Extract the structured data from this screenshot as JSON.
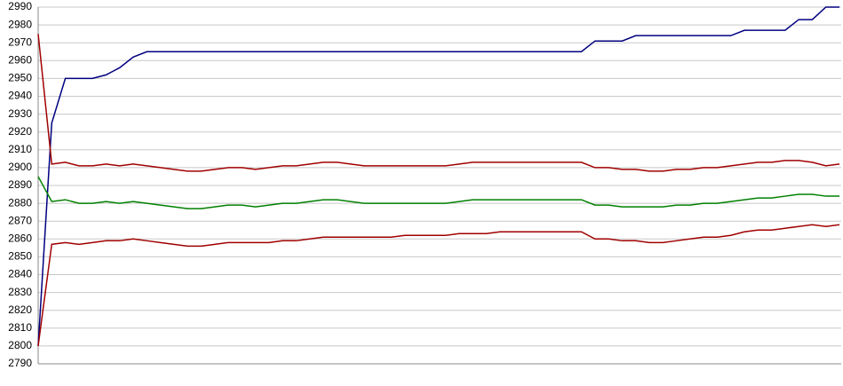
{
  "chart_data": {
    "type": "line",
    "ylim": [
      2790,
      2990
    ],
    "yticks": [
      2790,
      2800,
      2810,
      2820,
      2830,
      2840,
      2850,
      2860,
      2870,
      2880,
      2890,
      2900,
      2910,
      2920,
      2930,
      2940,
      2950,
      2960,
      2970,
      2980,
      2990
    ],
    "grid": true,
    "series": [
      {
        "color": "#000080",
        "values": [
          2800,
          2925,
          2950,
          2950,
          2950,
          2952,
          2956,
          2962,
          2965,
          2965,
          2965,
          2965,
          2965,
          2965,
          2965,
          2965,
          2965,
          2965,
          2965,
          2965,
          2965,
          2965,
          2965,
          2965,
          2965,
          2965,
          2965,
          2965,
          2965,
          2965,
          2965,
          2965,
          2965,
          2965,
          2965,
          2965,
          2965,
          2965,
          2965,
          2965,
          2965,
          2971,
          2971,
          2971,
          2974,
          2974,
          2974,
          2974,
          2974,
          2974,
          2974,
          2974,
          2977,
          2977,
          2977,
          2977,
          2983,
          2983,
          2990,
          2990
        ]
      },
      {
        "color": "#a00000",
        "values": [
          2975,
          2902,
          2903,
          2901,
          2901,
          2902,
          2901,
          2902,
          2901,
          2900,
          2899,
          2898,
          2898,
          2899,
          2900,
          2900,
          2899,
          2900,
          2901,
          2901,
          2902,
          2903,
          2903,
          2902,
          2901,
          2901,
          2901,
          2901,
          2901,
          2901,
          2901,
          2902,
          2903,
          2903,
          2903,
          2903,
          2903,
          2903,
          2903,
          2903,
          2903,
          2900,
          2900,
          2899,
          2899,
          2898,
          2898,
          2899,
          2899,
          2900,
          2900,
          2901,
          2902,
          2903,
          2903,
          2904,
          2904,
          2903,
          2901,
          2902
        ]
      },
      {
        "color": "#008000",
        "values": [
          2895,
          2881,
          2882,
          2880,
          2880,
          2881,
          2880,
          2881,
          2880,
          2879,
          2878,
          2877,
          2877,
          2878,
          2879,
          2879,
          2878,
          2879,
          2880,
          2880,
          2881,
          2882,
          2882,
          2881,
          2880,
          2880,
          2880,
          2880,
          2880,
          2880,
          2880,
          2881,
          2882,
          2882,
          2882,
          2882,
          2882,
          2882,
          2882,
          2882,
          2882,
          2879,
          2879,
          2878,
          2878,
          2878,
          2878,
          2879,
          2879,
          2880,
          2880,
          2881,
          2882,
          2883,
          2883,
          2884,
          2885,
          2885,
          2884,
          2884
        ]
      },
      {
        "color": "#a00000",
        "values": [
          2800,
          2857,
          2858,
          2857,
          2858,
          2859,
          2859,
          2860,
          2859,
          2858,
          2857,
          2856,
          2856,
          2857,
          2858,
          2858,
          2858,
          2858,
          2859,
          2859,
          2860,
          2861,
          2861,
          2861,
          2861,
          2861,
          2861,
          2862,
          2862,
          2862,
          2862,
          2863,
          2863,
          2863,
          2864,
          2864,
          2864,
          2864,
          2864,
          2864,
          2864,
          2860,
          2860,
          2859,
          2859,
          2858,
          2858,
          2859,
          2860,
          2861,
          2861,
          2862,
          2864,
          2865,
          2865,
          2866,
          2867,
          2868,
          2867,
          2868
        ]
      }
    ]
  }
}
